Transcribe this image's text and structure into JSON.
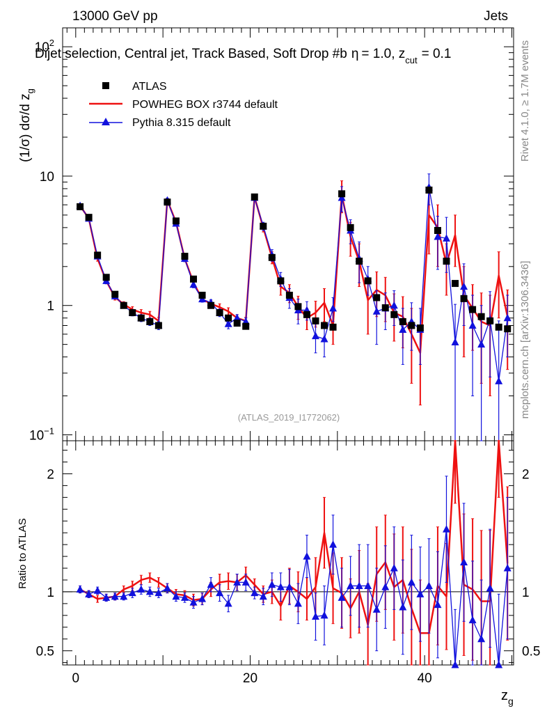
{
  "header": {
    "energy": "13000 GeV pp",
    "category": "Jets",
    "subtitle": "Dijet selection, Central jet, Track Based, Soft Drop #b",
    "subtitle_params": "= 1.0, z",
    "subtitle_cut": "cut",
    "subtitle_value": "= 0.1",
    "side_left_label": "Rivet 4.1.0, ≥ 1.7M events",
    "side_right_label": "mcplots.cern.ch [arXiv:1306.3436]",
    "analysis_id": "(ATLAS_2019_I1772062)"
  },
  "colors": {
    "data": "#000000",
    "powheg": "#ee1111",
    "pythia": "#1111dd"
  },
  "chart_data": {
    "type": "line",
    "main": {
      "ylabel": "(1/σ) dσ/d z",
      "ylabel_sub": "g",
      "yscale": "log",
      "ylim": [
        0.09,
        140
      ],
      "ytick_labels": [
        {
          "value": 0.1,
          "label": "10",
          "sup": "−1"
        },
        {
          "value": 1,
          "label": "1",
          "sup": ""
        },
        {
          "value": 10,
          "label": "10",
          "sup": ""
        },
        {
          "value": 100,
          "label": "10",
          "sup": "2"
        }
      ]
    },
    "ratio": {
      "ylabel": "Ratio to ATLAS",
      "ylim": [
        0.38,
        2.28
      ],
      "ytick_labels": [
        {
          "value": 0.5,
          "label": "0.5"
        },
        {
          "value": 1,
          "label": "1"
        },
        {
          "value": 2,
          "label": "2"
        }
      ]
    },
    "xlabel": "z",
    "xlabel_sub": "g",
    "xlim": [
      -1.5,
      50.2
    ],
    "xtick_labels": [
      {
        "value": 0,
        "label": "0"
      },
      {
        "value": 20,
        "label": "20"
      },
      {
        "value": 40,
        "label": "40"
      }
    ],
    "legend": [
      {
        "key": "data",
        "label": "ATLAS"
      },
      {
        "key": "powheg",
        "label": "POWHEG BOX r3744 default"
      },
      {
        "key": "pythia",
        "label": "Pythia 8.315 default"
      }
    ],
    "x": [
      0.5,
      1.5,
      2.5,
      3.5,
      4.5,
      5.5,
      6.5,
      7.5,
      8.5,
      9.5,
      10.5,
      11.5,
      12.5,
      13.5,
      14.5,
      15.5,
      16.5,
      17.5,
      18.5,
      19.5,
      20.5,
      21.5,
      22.5,
      23.5,
      24.5,
      25.5,
      26.5,
      27.5,
      28.5,
      29.5,
      30.5,
      31.5,
      32.5,
      33.5,
      34.5,
      35.5,
      36.5,
      37.5,
      38.5,
      39.5,
      40.5,
      41.5,
      42.5,
      43.5,
      44.5,
      45.5,
      46.5,
      47.5,
      48.5,
      49.5
    ],
    "series": [
      {
        "name": "ATLAS",
        "values": [
          5.8,
          4.8,
          2.45,
          1.65,
          1.22,
          1.0,
          0.88,
          0.8,
          0.75,
          0.7,
          6.3,
          4.5,
          2.4,
          1.6,
          1.2,
          1.0,
          0.88,
          0.8,
          0.73,
          0.69,
          6.9,
          4.1,
          2.35,
          1.55,
          1.2,
          0.98,
          0.85,
          0.76,
          0.7,
          0.68,
          7.3,
          4.0,
          2.2,
          1.55,
          1.15,
          0.96,
          0.85,
          0.75,
          0.7,
          0.67,
          7.8,
          3.8,
          2.2,
          1.48,
          1.13,
          0.93,
          0.82,
          0.76,
          0.68,
          0.66
        ]
      },
      {
        "name": "POWHEG BOX r3744 default",
        "values": [
          5.9,
          4.7,
          2.3,
          1.55,
          1.16,
          1.02,
          0.93,
          0.88,
          0.85,
          0.76,
          6.5,
          4.4,
          2.3,
          1.5,
          1.12,
          1.03,
          0.97,
          0.9,
          0.8,
          0.76,
          6.9,
          4.0,
          2.35,
          1.4,
          1.25,
          0.98,
          0.8,
          0.88,
          1.05,
          0.7,
          7.2,
          3.4,
          2.2,
          1.1,
          1.32,
          1.2,
          0.88,
          0.82,
          0.6,
          0.43,
          5.0,
          4.0,
          2.1,
          3.5,
          1.2,
          0.95,
          0.75,
          0.7,
          1.7,
          0.82
        ],
        "errors": [
          0.2,
          0.15,
          0.1,
          0.08,
          0.06,
          0.05,
          0.05,
          0.05,
          0.05,
          0.05,
          0.25,
          0.2,
          0.12,
          0.08,
          0.06,
          0.06,
          0.06,
          0.06,
          0.05,
          0.05,
          0.3,
          0.3,
          0.25,
          0.2,
          0.2,
          0.2,
          0.15,
          0.2,
          0.3,
          0.2,
          2.0,
          1.0,
          0.8,
          0.5,
          0.5,
          0.45,
          0.35,
          0.35,
          0.35,
          0.26,
          2.5,
          2.0,
          0.9,
          1.5,
          0.8,
          0.5,
          0.5,
          0.5,
          0.9,
          0.5
        ]
      },
      {
        "name": "Pythia 8.315 default",
        "values": [
          5.9,
          4.7,
          2.4,
          1.55,
          1.18,
          1.0,
          0.88,
          0.8,
          0.75,
          0.7,
          6.5,
          4.3,
          2.3,
          1.45,
          1.12,
          1.05,
          0.88,
          0.72,
          0.8,
          0.75,
          6.8,
          4.1,
          2.45,
          1.6,
          1.15,
          0.92,
          0.92,
          0.58,
          0.55,
          0.95,
          6.8,
          3.8,
          2.3,
          1.6,
          0.9,
          0.95,
          1.0,
          0.65,
          0.75,
          0.65,
          8.2,
          3.4,
          3.3,
          0.52,
          1.4,
          0.7,
          0.5,
          0.78,
          0.26,
          0.8
        ],
        "errors": [
          0.2,
          0.15,
          0.1,
          0.08,
          0.06,
          0.05,
          0.05,
          0.05,
          0.05,
          0.05,
          0.25,
          0.2,
          0.12,
          0.08,
          0.06,
          0.06,
          0.06,
          0.06,
          0.05,
          0.05,
          0.3,
          0.3,
          0.25,
          0.2,
          0.2,
          0.2,
          0.15,
          0.15,
          0.15,
          0.2,
          1.5,
          0.8,
          0.8,
          0.4,
          0.4,
          0.3,
          0.3,
          0.3,
          0.3,
          0.3,
          2.2,
          1.5,
          1.5,
          0.5,
          0.7,
          0.5,
          0.5,
          0.5,
          0.5,
          0.4
        ]
      }
    ],
    "ratio_series": [
      {
        "name": "POWHEG BOX r3744 default",
        "values": [
          1.02,
          0.98,
          0.94,
          0.95,
          0.96,
          1.02,
          1.05,
          1.1,
          1.12,
          1.08,
          1.03,
          0.98,
          0.97,
          0.93,
          0.94,
          1.02,
          1.08,
          1.09,
          1.08,
          1.14,
          1.06,
          0.98,
          1.0,
          0.88,
          1.05,
          1.0,
          0.94,
          1.04,
          1.5,
          1.03,
          0.99,
          0.86,
          1.0,
          0.72,
          1.15,
          1.25,
          1.04,
          1.1,
          0.86,
          0.65,
          0.65,
          1.05,
          0.96,
          2.35,
          1.06,
          1.02,
          0.92,
          0.92,
          2.5,
          1.24
        ],
        "errors": [
          0.03,
          0.03,
          0.03,
          0.03,
          0.03,
          0.03,
          0.04,
          0.04,
          0.04,
          0.04,
          0.04,
          0.04,
          0.04,
          0.05,
          0.05,
          0.06,
          0.07,
          0.07,
          0.07,
          0.07,
          0.05,
          0.07,
          0.1,
          0.12,
          0.15,
          0.17,
          0.18,
          0.25,
          0.3,
          0.3,
          0.3,
          0.25,
          0.35,
          0.35,
          0.4,
          0.4,
          0.45,
          0.45,
          0.5,
          0.45,
          0.4,
          0.5,
          0.45,
          0.6,
          0.6,
          0.6,
          0.6,
          0.6,
          0.7,
          0.65
        ]
      },
      {
        "name": "Pythia 8.315 default",
        "values": [
          1.02,
          0.98,
          1.01,
          0.95,
          0.96,
          0.96,
          0.99,
          1.02,
          1.0,
          0.99,
          1.03,
          0.96,
          0.95,
          0.91,
          0.94,
          1.06,
          0.99,
          0.9,
          1.08,
          1.08,
          0.99,
          0.96,
          1.06,
          1.04,
          1.04,
          0.9,
          1.3,
          0.79,
          0.8,
          1.4,
          0.95,
          1.05,
          1.05,
          1.05,
          0.85,
          1.04,
          1.2,
          0.87,
          1.08,
          0.98,
          1.05,
          0.89,
          1.53,
          0.35,
          1.25,
          0.76,
          0.6,
          1.03,
          0.38,
          1.2
        ],
        "errors": [
          0.03,
          0.03,
          0.03,
          0.03,
          0.03,
          0.03,
          0.04,
          0.04,
          0.04,
          0.04,
          0.04,
          0.04,
          0.04,
          0.05,
          0.05,
          0.06,
          0.07,
          0.07,
          0.07,
          0.07,
          0.05,
          0.07,
          0.1,
          0.12,
          0.15,
          0.17,
          0.18,
          0.2,
          0.25,
          0.25,
          0.25,
          0.25,
          0.35,
          0.35,
          0.35,
          0.35,
          0.35,
          0.4,
          0.4,
          0.4,
          0.4,
          0.45,
          0.45,
          0.5,
          0.5,
          0.5,
          0.5,
          0.5,
          0.6,
          0.6
        ]
      }
    ]
  }
}
